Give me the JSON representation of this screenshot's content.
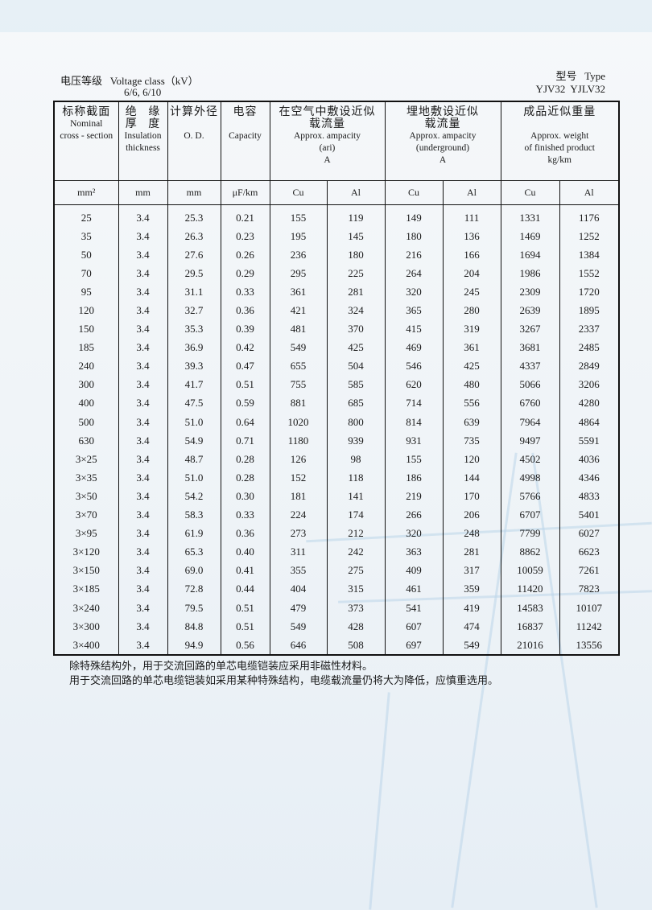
{
  "header": {
    "voltage_label_cn": "电压等级",
    "voltage_label_en": "Voltage class（kV）",
    "voltage_values": "6/6, 6/10",
    "type_label": "型号   Type",
    "type_values": "YJV32  YJLV32"
  },
  "columns": {
    "section": {
      "cn": "标称截面",
      "en1": "Nominal",
      "en2": "cross - section",
      "unit": "mm²"
    },
    "insulation": {
      "cn1": "绝   缘",
      "cn2": "厚   度",
      "en1": "Insulation",
      "en2": "thickness",
      "unit": "mm"
    },
    "od": {
      "cn": "计算外径",
      "en": "O. D.",
      "unit": "mm"
    },
    "capacity": {
      "cn": "电容",
      "en": "Capacity",
      "unit": "μF/km"
    },
    "air": {
      "cn1": "在空气中敷设近似",
      "cn2": "载流量",
      "en1": "Approx. ampacity",
      "en2": "(ari)",
      "en3": "A",
      "cu": "Cu",
      "al": "Al"
    },
    "ground": {
      "cn1": "埋地敷设近似",
      "cn2": "载流量",
      "en1": "Approx. ampacity",
      "en2": "(underground)",
      "en3": "A",
      "cu": "Cu",
      "al": "Al"
    },
    "weight": {
      "cn": "成品近似重量",
      "en1": "Approx. weight",
      "en2": "of finished product",
      "en3": "kg/km",
      "cu": "Cu",
      "al": "Al"
    }
  },
  "rows": [
    [
      "25",
      "3.4",
      "25.3",
      "0.21",
      "155",
      "119",
      "149",
      "111",
      "1331",
      "1176"
    ],
    [
      "35",
      "3.4",
      "26.3",
      "0.23",
      "195",
      "145",
      "180",
      "136",
      "1469",
      "1252"
    ],
    [
      "50",
      "3.4",
      "27.6",
      "0.26",
      "236",
      "180",
      "216",
      "166",
      "1694",
      "1384"
    ],
    [
      "70",
      "3.4",
      "29.5",
      "0.29",
      "295",
      "225",
      "264",
      "204",
      "1986",
      "1552"
    ],
    [
      "95",
      "3.4",
      "31.1",
      "0.33",
      "361",
      "281",
      "320",
      "245",
      "2309",
      "1720"
    ],
    [
      "120",
      "3.4",
      "32.7",
      "0.36",
      "421",
      "324",
      "365",
      "280",
      "2639",
      "1895"
    ],
    [
      "150",
      "3.4",
      "35.3",
      "0.39",
      "481",
      "370",
      "415",
      "319",
      "3267",
      "2337"
    ],
    [
      "185",
      "3.4",
      "36.9",
      "0.42",
      "549",
      "425",
      "469",
      "361",
      "3681",
      "2485"
    ],
    [
      "240",
      "3.4",
      "39.3",
      "0.47",
      "655",
      "504",
      "546",
      "425",
      "4337",
      "2849"
    ],
    [
      "300",
      "3.4",
      "41.7",
      "0.51",
      "755",
      "585",
      "620",
      "480",
      "5066",
      "3206"
    ],
    [
      "400",
      "3.4",
      "47.5",
      "0.59",
      "881",
      "685",
      "714",
      "556",
      "6760",
      "4280"
    ],
    [
      "500",
      "3.4",
      "51.0",
      "0.64",
      "1020",
      "800",
      "814",
      "639",
      "7964",
      "4864"
    ],
    [
      "630",
      "3.4",
      "54.9",
      "0.71",
      "1180",
      "939",
      "931",
      "735",
      "9497",
      "5591"
    ],
    [
      "3×25",
      "3.4",
      "48.7",
      "0.28",
      "126",
      "98",
      "155",
      "120",
      "4502",
      "4036"
    ],
    [
      "3×35",
      "3.4",
      "51.0",
      "0.28",
      "152",
      "118",
      "186",
      "144",
      "4998",
      "4346"
    ],
    [
      "3×50",
      "3.4",
      "54.2",
      "0.30",
      "181",
      "141",
      "219",
      "170",
      "5766",
      "4833"
    ],
    [
      "3×70",
      "3.4",
      "58.3",
      "0.33",
      "224",
      "174",
      "266",
      "206",
      "6707",
      "5401"
    ],
    [
      "3×95",
      "3.4",
      "61.9",
      "0.36",
      "273",
      "212",
      "320",
      "248",
      "7799",
      "6027"
    ],
    [
      "3×120",
      "3.4",
      "65.3",
      "0.40",
      "311",
      "242",
      "363",
      "281",
      "8862",
      "6623"
    ],
    [
      "3×150",
      "3.4",
      "69.0",
      "0.41",
      "355",
      "275",
      "409",
      "317",
      "10059",
      "7261"
    ],
    [
      "3×185",
      "3.4",
      "72.8",
      "0.44",
      "404",
      "315",
      "461",
      "359",
      "11420",
      "7823"
    ],
    [
      "3×240",
      "3.4",
      "79.5",
      "0.51",
      "479",
      "373",
      "541",
      "419",
      "14583",
      "10107"
    ],
    [
      "3×300",
      "3.4",
      "84.8",
      "0.51",
      "549",
      "428",
      "607",
      "474",
      "16837",
      "11242"
    ],
    [
      "3×400",
      "3.4",
      "94.9",
      "0.56",
      "646",
      "508",
      "697",
      "549",
      "21016",
      "13556"
    ]
  ],
  "notes": [
    "除特殊结构外，用于交流回路的单芯电缆铠装应采用非磁性材料。",
    "用于交流回路的单芯电缆铠装如采用某种特殊结构，电缆载流量仍将大为降低，应慎重选用。"
  ]
}
